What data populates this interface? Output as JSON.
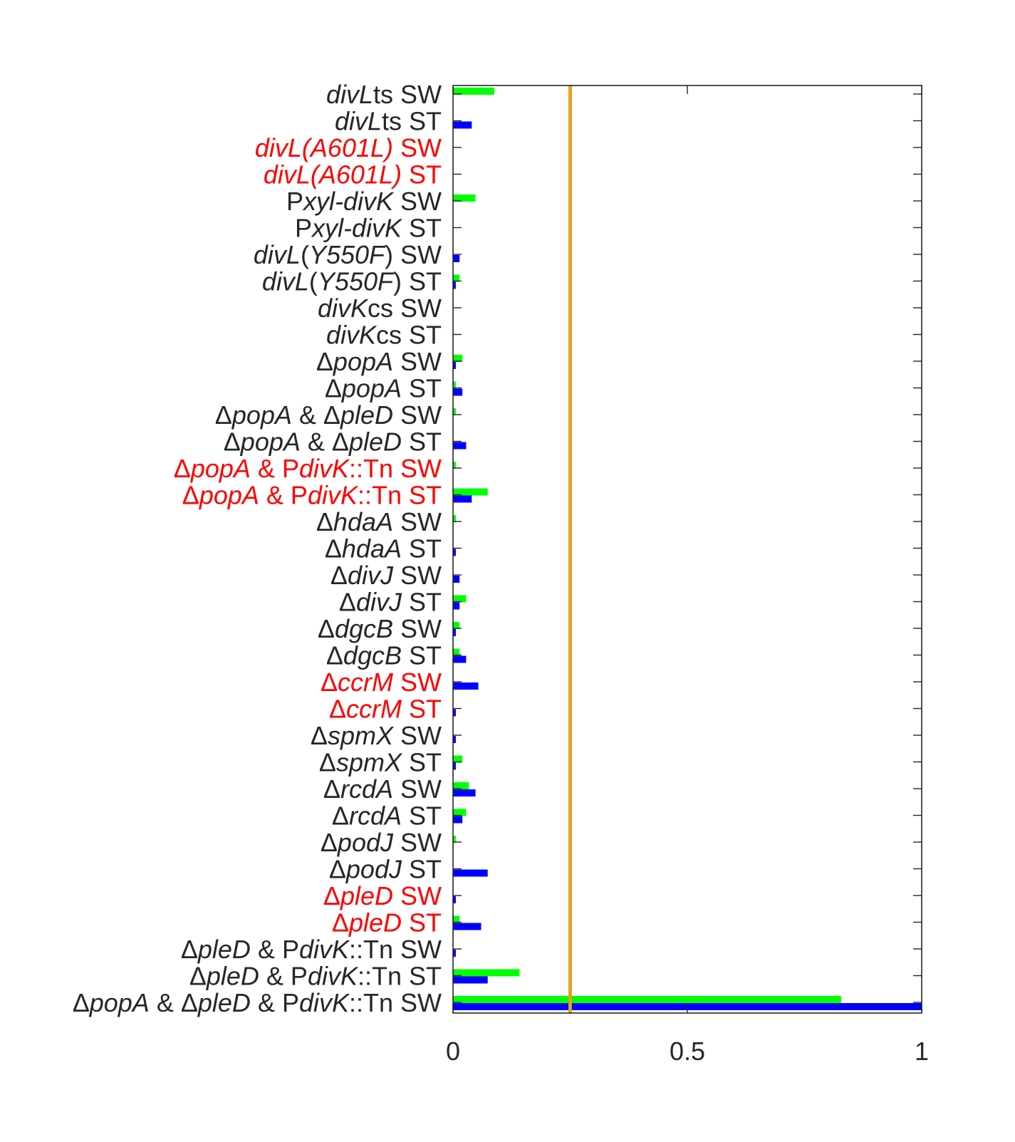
{
  "chart_data": {
    "type": "bar",
    "orientation": "horizontal",
    "title": "",
    "xlabel": "",
    "ylabel": "",
    "xlim": [
      0,
      1
    ],
    "xticks": [
      {
        "value": 0,
        "label": "0"
      },
      {
        "value": 0.5,
        "label": "0.5"
      },
      {
        "value": 1,
        "label": "1"
      }
    ],
    "grid": false,
    "legend": "none",
    "reference_line": {
      "value": 0.25,
      "color": "#e6a020"
    },
    "label_colors": {
      "normal": "#262626",
      "highlight": "#ff0000"
    },
    "categories": [
      {
        "segments": [
          {
            "t": "divL",
            "i": true
          },
          {
            "t": "ts SW",
            "i": false
          }
        ],
        "highlight": false
      },
      {
        "segments": [
          {
            "t": "divL",
            "i": true
          },
          {
            "t": "ts ST",
            "i": false
          }
        ],
        "highlight": false
      },
      {
        "segments": [
          {
            "t": "divL(A601L)",
            "i": true
          },
          {
            "t": " SW",
            "i": false
          }
        ],
        "highlight": true
      },
      {
        "segments": [
          {
            "t": "divL(A601L)",
            "i": true
          },
          {
            "t": " ST",
            "i": false
          }
        ],
        "highlight": true
      },
      {
        "segments": [
          {
            "t": "P",
            "i": false
          },
          {
            "t": "xyl-divK",
            "i": true
          },
          {
            "t": " SW",
            "i": false
          }
        ],
        "highlight": false
      },
      {
        "segments": [
          {
            "t": "P",
            "i": false
          },
          {
            "t": "xyl-divK",
            "i": true
          },
          {
            "t": " ST",
            "i": false
          }
        ],
        "highlight": false
      },
      {
        "segments": [
          {
            "t": "divL",
            "i": true
          },
          {
            "t": "(",
            "i": false
          },
          {
            "t": "Y550F",
            "i": true
          },
          {
            "t": ") SW",
            "i": false
          }
        ],
        "highlight": false
      },
      {
        "segments": [
          {
            "t": "divL",
            "i": true
          },
          {
            "t": "(",
            "i": false
          },
          {
            "t": "Y550F",
            "i": true
          },
          {
            "t": ") ST",
            "i": false
          }
        ],
        "highlight": false
      },
      {
        "segments": [
          {
            "t": "divK",
            "i": true
          },
          {
            "t": "cs SW",
            "i": false
          }
        ],
        "highlight": false
      },
      {
        "segments": [
          {
            "t": "divK",
            "i": true
          },
          {
            "t": "cs ST",
            "i": false
          }
        ],
        "highlight": false
      },
      {
        "segments": [
          {
            "t": "Δ",
            "i": false
          },
          {
            "t": "popA",
            "i": true
          },
          {
            "t": " SW",
            "i": false
          }
        ],
        "highlight": false
      },
      {
        "segments": [
          {
            "t": "Δ",
            "i": false
          },
          {
            "t": "popA",
            "i": true
          },
          {
            "t": " ST",
            "i": false
          }
        ],
        "highlight": false
      },
      {
        "segments": [
          {
            "t": "Δ",
            "i": false
          },
          {
            "t": "popA",
            "i": true
          },
          {
            "t": " & Δ",
            "i": false
          },
          {
            "t": "pleD",
            "i": true
          },
          {
            "t": " SW",
            "i": false
          }
        ],
        "highlight": false
      },
      {
        "segments": [
          {
            "t": "Δ",
            "i": false
          },
          {
            "t": "popA",
            "i": true
          },
          {
            "t": " & Δ",
            "i": false
          },
          {
            "t": "pleD",
            "i": true
          },
          {
            "t": " ST",
            "i": false
          }
        ],
        "highlight": false
      },
      {
        "segments": [
          {
            "t": "Δ",
            "i": false
          },
          {
            "t": "popA",
            "i": true
          },
          {
            "t": " & P",
            "i": false
          },
          {
            "t": "divK",
            "i": true
          },
          {
            "t": "::Tn SW",
            "i": false
          }
        ],
        "highlight": true
      },
      {
        "segments": [
          {
            "t": "Δ",
            "i": false
          },
          {
            "t": "popA",
            "i": true
          },
          {
            "t": " & P",
            "i": false
          },
          {
            "t": "divK",
            "i": true
          },
          {
            "t": "::Tn ST",
            "i": false
          }
        ],
        "highlight": true
      },
      {
        "segments": [
          {
            "t": "Δ",
            "i": false
          },
          {
            "t": "hdaA",
            "i": true
          },
          {
            "t": " SW",
            "i": false
          }
        ],
        "highlight": false
      },
      {
        "segments": [
          {
            "t": "Δ",
            "i": false
          },
          {
            "t": "hdaA",
            "i": true
          },
          {
            "t": " ST",
            "i": false
          }
        ],
        "highlight": false
      },
      {
        "segments": [
          {
            "t": "Δ",
            "i": false
          },
          {
            "t": "divJ",
            "i": true
          },
          {
            "t": " SW",
            "i": false
          }
        ],
        "highlight": false
      },
      {
        "segments": [
          {
            "t": "Δ",
            "i": false
          },
          {
            "t": "divJ",
            "i": true
          },
          {
            "t": " ST",
            "i": false
          }
        ],
        "highlight": false
      },
      {
        "segments": [
          {
            "t": "Δ",
            "i": false
          },
          {
            "t": "dgcB",
            "i": true
          },
          {
            "t": " SW",
            "i": false
          }
        ],
        "highlight": false
      },
      {
        "segments": [
          {
            "t": "Δ",
            "i": false
          },
          {
            "t": "dgcB",
            "i": true
          },
          {
            "t": " ST",
            "i": false
          }
        ],
        "highlight": false
      },
      {
        "segments": [
          {
            "t": "Δ",
            "i": false
          },
          {
            "t": "ccrM",
            "i": true
          },
          {
            "t": " SW",
            "i": false
          }
        ],
        "highlight": true
      },
      {
        "segments": [
          {
            "t": "Δ",
            "i": false
          },
          {
            "t": "ccrM",
            "i": true
          },
          {
            "t": " ST",
            "i": false
          }
        ],
        "highlight": true
      },
      {
        "segments": [
          {
            "t": "Δ",
            "i": false
          },
          {
            "t": "spmX",
            "i": true
          },
          {
            "t": " SW",
            "i": false
          }
        ],
        "highlight": false
      },
      {
        "segments": [
          {
            "t": "Δ",
            "i": false
          },
          {
            "t": "spmX",
            "i": true
          },
          {
            "t": " ST",
            "i": false
          }
        ],
        "highlight": false
      },
      {
        "segments": [
          {
            "t": "Δ",
            "i": false
          },
          {
            "t": "rcdA",
            "i": true
          },
          {
            "t": " SW",
            "i": false
          }
        ],
        "highlight": false
      },
      {
        "segments": [
          {
            "t": "Δ",
            "i": false
          },
          {
            "t": "rcdA",
            "i": true
          },
          {
            "t": " ST",
            "i": false
          }
        ],
        "highlight": false
      },
      {
        "segments": [
          {
            "t": "Δ",
            "i": false
          },
          {
            "t": "podJ",
            "i": true
          },
          {
            "t": " SW",
            "i": false
          }
        ],
        "highlight": false
      },
      {
        "segments": [
          {
            "t": "Δ",
            "i": false
          },
          {
            "t": "podJ",
            "i": true
          },
          {
            "t": " ST",
            "i": false
          }
        ],
        "highlight": false
      },
      {
        "segments": [
          {
            "t": "Δ",
            "i": false
          },
          {
            "t": "pleD",
            "i": true
          },
          {
            "t": " SW",
            "i": false
          }
        ],
        "highlight": true
      },
      {
        "segments": [
          {
            "t": "Δ",
            "i": false
          },
          {
            "t": "pleD",
            "i": true
          },
          {
            "t": " ST",
            "i": false
          }
        ],
        "highlight": true
      },
      {
        "segments": [
          {
            "t": "Δ",
            "i": false
          },
          {
            "t": "pleD",
            "i": true
          },
          {
            "t": " & P",
            "i": false
          },
          {
            "t": "divK",
            "i": true
          },
          {
            "t": "::Tn SW",
            "i": false
          }
        ],
        "highlight": false
      },
      {
        "segments": [
          {
            "t": "Δ",
            "i": false
          },
          {
            "t": "pleD",
            "i": true
          },
          {
            "t": " & P",
            "i": false
          },
          {
            "t": "divK",
            "i": true
          },
          {
            "t": "::Tn ST",
            "i": false
          }
        ],
        "highlight": false
      },
      {
        "segments": [
          {
            "t": "Δ",
            "i": false
          },
          {
            "t": "popA",
            "i": true
          },
          {
            "t": " & Δ",
            "i": false
          },
          {
            "t": "pleD",
            "i": true
          },
          {
            "t": " & P",
            "i": false
          },
          {
            "t": "divK",
            "i": true
          },
          {
            "t": "::Tn SW",
            "i": false
          }
        ],
        "highlight": false
      }
    ],
    "series": [
      {
        "color": "#00ff00",
        "values": [
          0.088,
          0,
          0,
          0,
          0.048,
          0,
          0,
          0.014,
          0,
          0,
          0.02,
          0.006,
          0.006,
          0,
          0.006,
          0.074,
          0.006,
          0,
          0,
          0.028,
          0.014,
          0.014,
          0,
          0,
          0,
          0.02,
          0.034,
          0.028,
          0.006,
          0,
          0,
          0.014,
          0,
          0.142,
          0.828
        ]
      },
      {
        "color": "#0000ff",
        "values": [
          0,
          0.04,
          0,
          0,
          0,
          0,
          0.014,
          0.006,
          0,
          0,
          0.006,
          0.02,
          0,
          0.028,
          0,
          0.04,
          0,
          0.006,
          0.014,
          0.014,
          0.006,
          0.028,
          0.054,
          0.006,
          0.006,
          0.006,
          0.048,
          0.02,
          0,
          0.074,
          0.006,
          0.06,
          0.006,
          0.074,
          1.0
        ]
      }
    ]
  }
}
